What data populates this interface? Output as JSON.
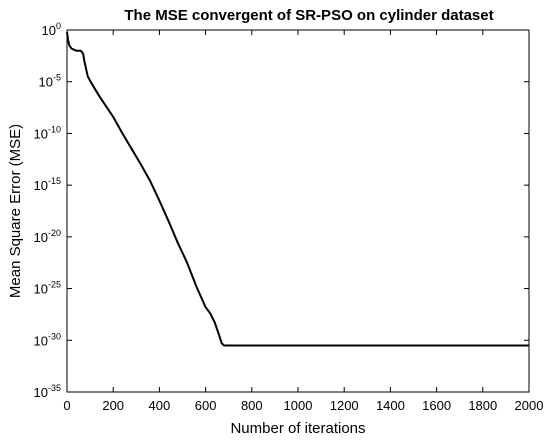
{
  "chart_data": {
    "type": "line",
    "title": "The MSE convergent of SR-PSO on cylinder dataset",
    "xlabel": "Number of iterations",
    "ylabel": "Mean Square Error (MSE)",
    "xlim": [
      0,
      2000
    ],
    "ylim_log10": [
      -35,
      0
    ],
    "y_scale": "log",
    "grid": false,
    "x_ticks": [
      "0",
      "200",
      "400",
      "600",
      "800",
      "1000",
      "1200",
      "1400",
      "1600",
      "1800",
      "2000"
    ],
    "y_ticks": [
      {
        "base": "10",
        "exp": "0"
      },
      {
        "base": "10",
        "exp": "-5"
      },
      {
        "base": "10",
        "exp": "-10"
      },
      {
        "base": "10",
        "exp": "-15"
      },
      {
        "base": "10",
        "exp": "-20"
      },
      {
        "base": "10",
        "exp": "-25"
      },
      {
        "base": "10",
        "exp": "-30"
      },
      {
        "base": "10",
        "exp": "-35"
      }
    ],
    "series": [
      {
        "color": "#000000",
        "x": [
          0,
          5,
          10,
          20,
          40,
          60,
          70,
          75,
          90,
          110,
          140,
          170,
          200,
          240,
          280,
          320,
          360,
          400,
          440,
          480,
          520,
          560,
          600,
          620,
          640,
          660,
          670,
          680,
          700,
          800,
          1000,
          1500,
          2000
        ],
        "y": [
          "1e-0.2",
          "1e-1",
          "1e-1.5",
          "1e-1.8",
          "1e-2",
          "1e-2",
          "1e-2.3",
          "1e-3",
          "1e-4.5",
          "1e-5.3",
          "1e-6.4",
          "1e-7.4",
          "1e-8.4",
          "1e-10",
          "1e-11.5",
          "1e-13",
          "1e-14.6",
          "1e-16.5",
          "1e-18.5",
          "1e-20.6",
          "1e-22.5",
          "1e-24.8",
          "1e-26.8",
          "1e-27.4",
          "1e-28.3",
          "1e-29.6",
          "1e-30.3",
          "1e-30.5",
          "1e-30.5",
          "1e-30.5",
          "1e-30.5",
          "1e-30.5",
          "1e-30.5"
        ]
      }
    ]
  }
}
